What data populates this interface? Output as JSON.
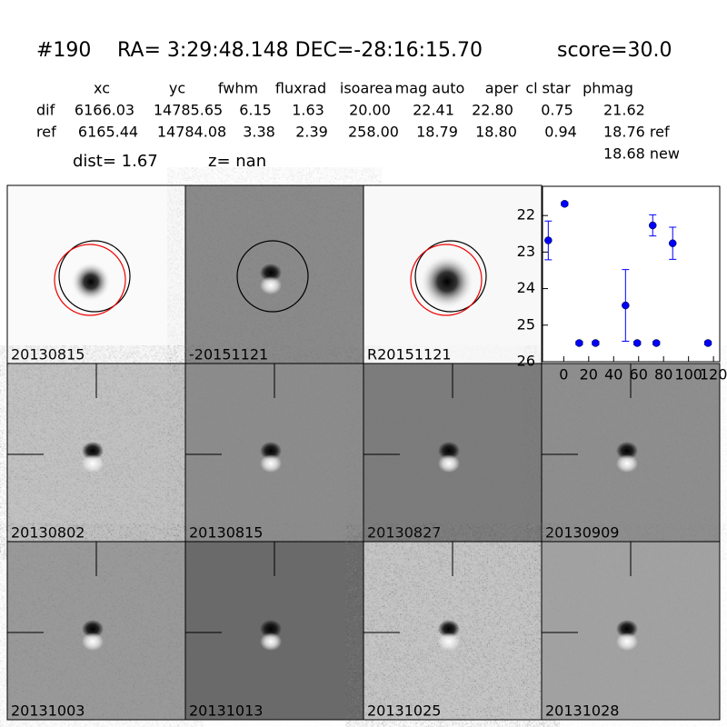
{
  "header": {
    "id": "#190",
    "coords": "RA= 3:29:48.148 DEC=-28:16:15.70",
    "score": "score=30.0"
  },
  "table": {
    "columns": [
      "xc",
      "yc",
      "fwhm",
      "fluxrad",
      "isoarea",
      "mag auto",
      "aper",
      "cl star",
      "phmag"
    ],
    "rows": [
      [
        "dif",
        "6166.03",
        "14785.65",
        "6.15",
        "1.63",
        "20.00",
        "22.41",
        "22.80",
        "0.75",
        "21.62"
      ],
      [
        "ref",
        "6165.44",
        "14784.08",
        "3.38",
        "2.39",
        "258.00",
        "18.79",
        "18.80",
        "0.94",
        "18.76 ref"
      ]
    ],
    "extra": "18.68 new"
  },
  "dist": "dist=  1.67",
  "z": "z=   nan",
  "panels": [
    {
      "label": "20130815"
    },
    {
      "label": "-20151121"
    },
    {
      "label": "R20151121"
    },
    {
      "label": "20130802"
    },
    {
      "label": "20130815",
      "color": "#ff0000"
    },
    {
      "label": "20130827"
    },
    {
      "label": "20130909"
    },
    {
      "label": "20131003"
    },
    {
      "label": "20131013"
    },
    {
      "label": "20131025"
    },
    {
      "label": "20131028"
    }
  ],
  "chart_data": {
    "type": "scatter",
    "color": "#0000ff",
    "x": [
      -12.4,
      0.7,
      12.4,
      25.5,
      49.5,
      58.9,
      74.2,
      71.3,
      87.3,
      115.6
    ],
    "values": [
      22.68,
      21.68,
      25.49,
      25.49,
      24.46,
      25.49,
      25.49,
      22.27,
      22.76,
      25.49
    ],
    "errors": [
      0.53,
      0.05,
      0.05,
      0.05,
      0.98,
      0.05,
      0.05,
      0.29,
      0.44,
      0.05
    ],
    "xlim": [
      -17,
      125
    ],
    "ylim": [
      26,
      21.2
    ],
    "xticks": [
      0,
      20,
      40,
      60,
      80,
      100,
      120
    ],
    "yticks": [
      22,
      23,
      24,
      25,
      26
    ]
  }
}
